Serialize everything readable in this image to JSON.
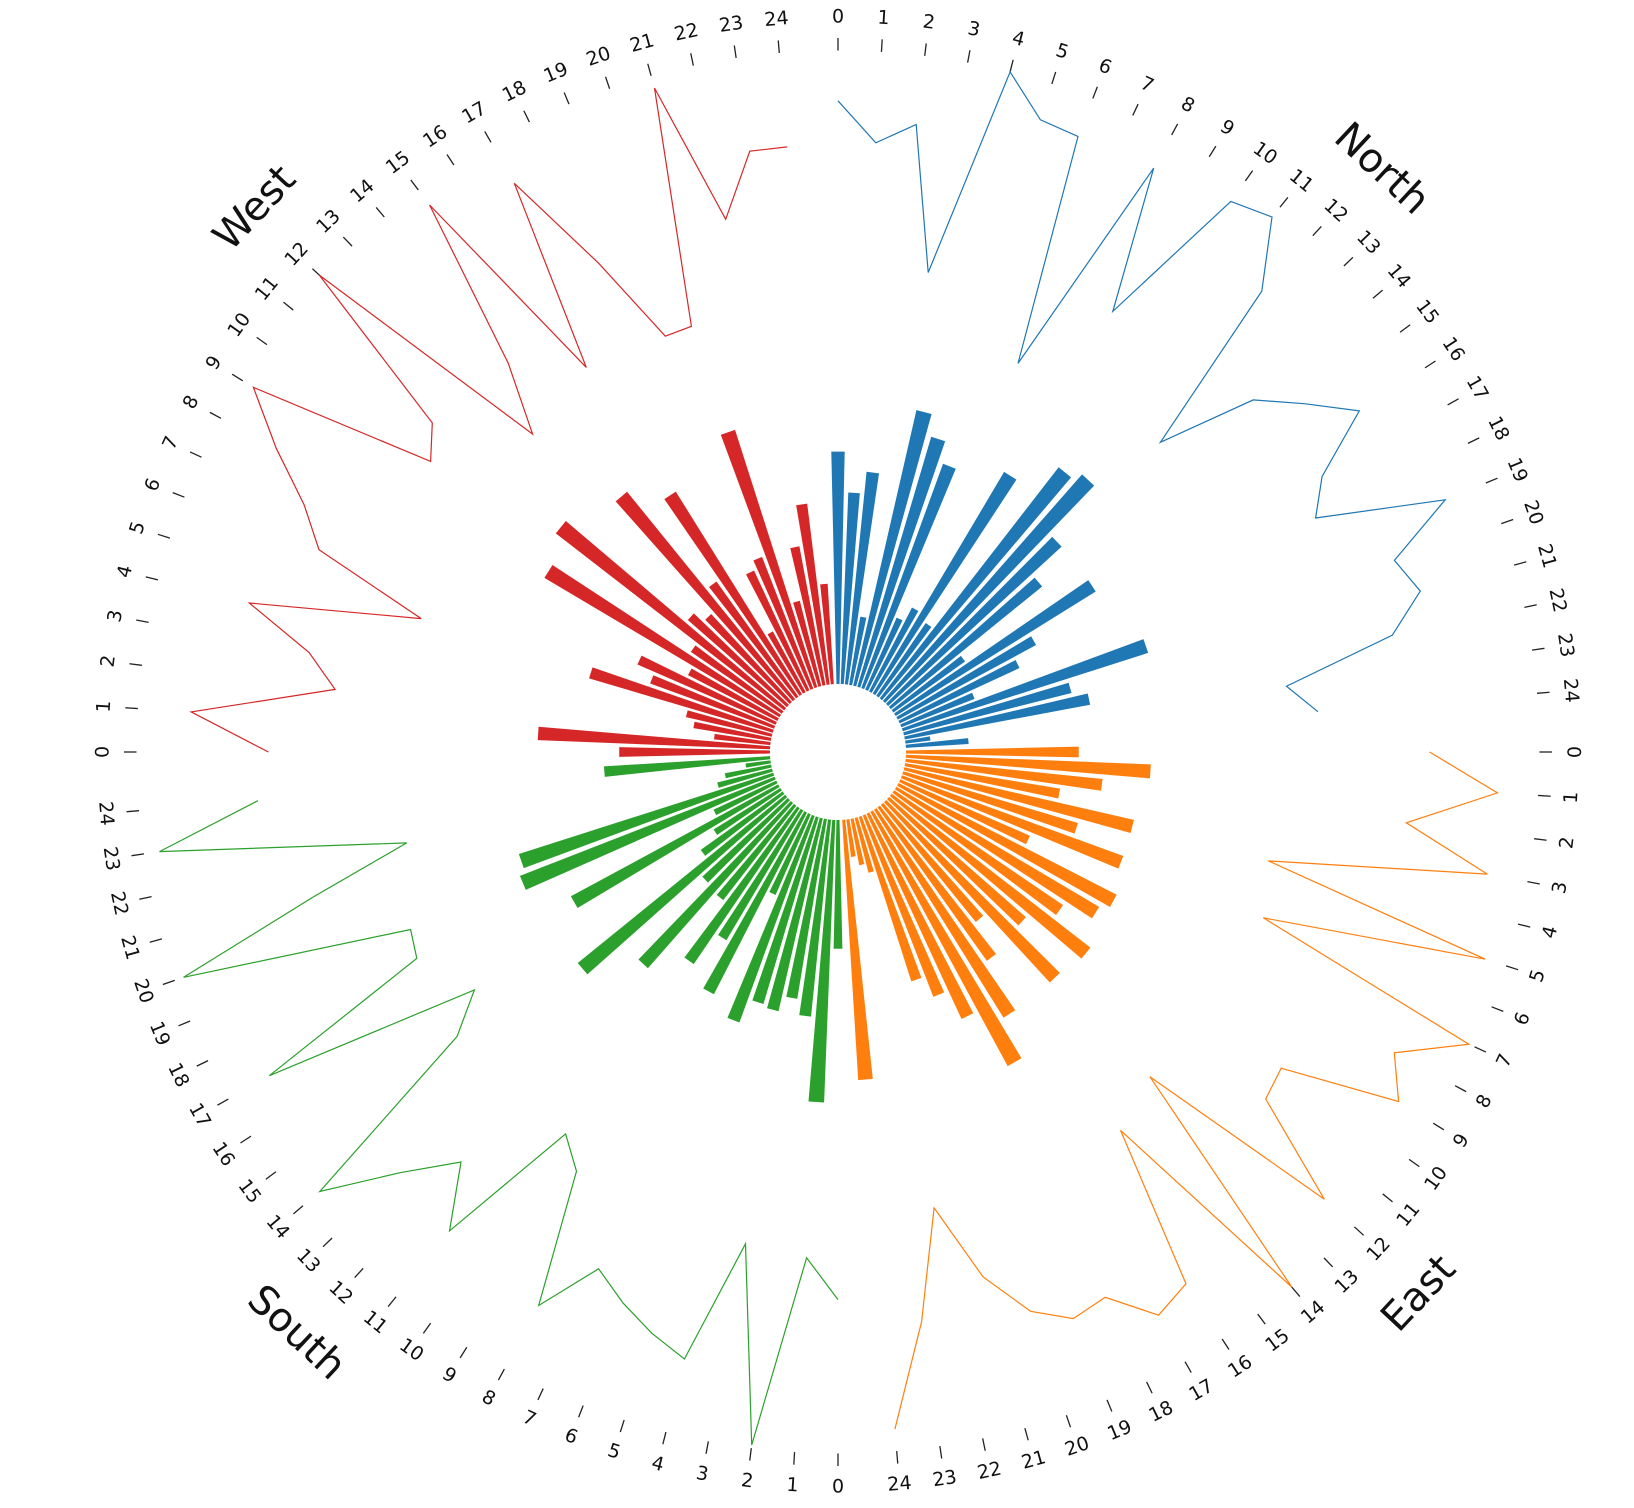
{
  "chart_data": {
    "type": "radial",
    "categories": [
      0,
      1,
      2,
      3,
      4,
      5,
      6,
      7,
      8,
      9,
      10,
      11,
      12,
      13,
      14,
      15,
      16,
      17,
      18,
      19,
      20,
      21,
      22,
      23,
      24
    ],
    "ylim": [
      0,
      100
    ],
    "y2lim": [
      0,
      100
    ],
    "series": [
      {
        "name": "North",
        "color": "#1f77b4",
        "values": [
          74,
          61,
          68,
          22,
          90,
          83,
          76,
          25,
          30,
          82,
          28,
          93,
          96,
          75,
          62,
          28,
          75,
          50,
          42,
          25,
          82,
          55,
          60,
          8,
          20
        ],
        "line_values": [
          74,
          61,
          68,
          22,
          90,
          78,
          77,
          3,
          78,
          32,
          82,
          86,
          66,
          9,
          40,
          52,
          65,
          44,
          36,
          76,
          54,
          59,
          47,
          11,
          20
        ]
      },
      {
        "name": "East",
        "color": "#ff7f0e",
        "values": [
          55,
          78,
          63,
          50,
          75,
          58,
          75,
          45,
          78,
          75,
          65,
          80,
          58,
          78,
          48,
          60,
          78,
          92,
          72,
          62,
          55,
          18,
          15,
          12,
          83
        ],
        "line_values": [
          55,
          77,
          49,
          77,
          8,
          83,
          12,
          88,
          68,
          77,
          40,
          42,
          77,
          10,
          90,
          17,
          69,
          73,
          60,
          62,
          55,
          40,
          15,
          50,
          83
        ]
      },
      {
        "name": "South",
        "color": "#2ca02c",
        "values": [
          41,
          90,
          63,
          58,
          63,
          62,
          70,
          28,
          65,
          48,
          60,
          38,
          70,
          37,
          85,
          32,
          25,
          75,
          22,
          87,
          85,
          18,
          15,
          8,
          53
        ],
        "line_values": [
          41,
          28,
          89,
          26,
          66,
          61,
          55,
          48,
          67,
          24,
          16,
          63,
          44,
          60,
          83,
          18,
          5,
          75,
          16,
          14,
          87,
          40,
          7,
          85,
          52
        ]
      },
      {
        "name": "West",
        "color": "#d62728",
        "values": [
          48,
          74,
          18,
          25,
          28,
          61,
          42,
          48,
          32,
          87,
          35,
          92,
          42,
          38,
          85,
          45,
          76,
          22,
          42,
          45,
          86,
          28,
          45,
          58,
          32
        ],
        "line_values": [
          48,
          73,
          28,
          38,
          60,
          6,
          44,
          54,
          70,
          86,
          26,
          33,
          91,
          7,
          29,
          84,
          13,
          75,
          40,
          10,
          10,
          86,
          40,
          60,
          60
        ]
      }
    ]
  }
}
